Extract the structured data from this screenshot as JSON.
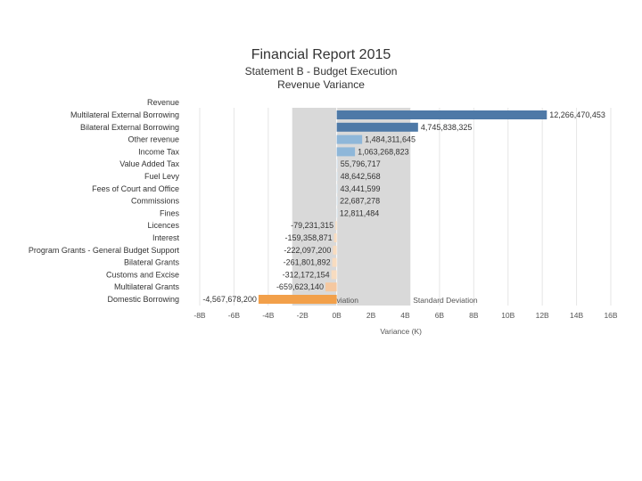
{
  "header": {
    "title": "Financial Report 2015",
    "subtitle": "Statement B - Budget Execution",
    "subtitle2": "Revenue Variance"
  },
  "chart_data": {
    "type": "bar",
    "orientation": "horizontal",
    "title": "Financial Report 2015",
    "xlabel": "Variance (K)",
    "ylabel": "",
    "header_category": "Revenue",
    "categories": [
      "Multilateral External Borrowing",
      "Bilateral External Borrowing",
      "Other revenue",
      "Income Tax",
      "Value Added Tax",
      "Fuel Levy",
      "Fees of Court and Office",
      "Commissions",
      "Fines",
      "Licences",
      "Interest",
      "Program Grants - General Budget Support",
      "Bilateral Grants",
      "Customs and Excise",
      "Multilateral Grants",
      "Domestic Borrowing"
    ],
    "values": [
      12266470453,
      4745838325,
      1484311645,
      1063268823,
      55796717,
      48642568,
      43441599,
      22687278,
      12811484,
      -79231315,
      -159358871,
      -222097200,
      -261801892,
      -312172154,
      -659623140,
      -4567678200
    ],
    "labels": [
      "12,266,470,453",
      "4,745,838,325",
      "1,484,311,645",
      "1,063,268,823",
      "55,796,717",
      "48,642,568",
      "43,441,599",
      "22,687,278",
      "12,811,484",
      "-79,231,315",
      "-159,358,871",
      "-222,097,200",
      "-261,801,892",
      "-312,172,154",
      "-659,623,140",
      "-4,567,678,200"
    ],
    "xlim": [
      -8000000000,
      16000000000
    ],
    "xticks": [
      {
        "v": -8000000000,
        "label": "-8B"
      },
      {
        "v": -6000000000,
        "label": "-6B"
      },
      {
        "v": -4000000000,
        "label": "-4B"
      },
      {
        "v": -2000000000,
        "label": "-2B"
      },
      {
        "v": 0,
        "label": "0B"
      },
      {
        "v": 2000000000,
        "label": "2B"
      },
      {
        "v": 4000000000,
        "label": "4B"
      },
      {
        "v": 6000000000,
        "label": "6B"
      },
      {
        "v": 8000000000,
        "label": "8B"
      },
      {
        "v": 10000000000,
        "label": "10B"
      },
      {
        "v": 12000000000,
        "label": "12B"
      },
      {
        "v": 14000000000,
        "label": "14B"
      },
      {
        "v": 16000000000,
        "label": "16B"
      }
    ],
    "std_band": {
      "from": -2600000000,
      "to": 4300000000,
      "label": "Standard Deviation"
    },
    "colors": {
      "positive_strong": "#4e79a7",
      "positive_mid": "#8fb7d9",
      "positive_light": "#b9d5ea",
      "positive_pale": "#dbe9f4",
      "negative_pale": "#f8dcc0",
      "negative_light": "#f5c8a0",
      "negative_strong": "#f2a04a",
      "band": "#d9d9d9",
      "grid": "#e6e6e6",
      "zero_line": "#ffffff"
    }
  }
}
